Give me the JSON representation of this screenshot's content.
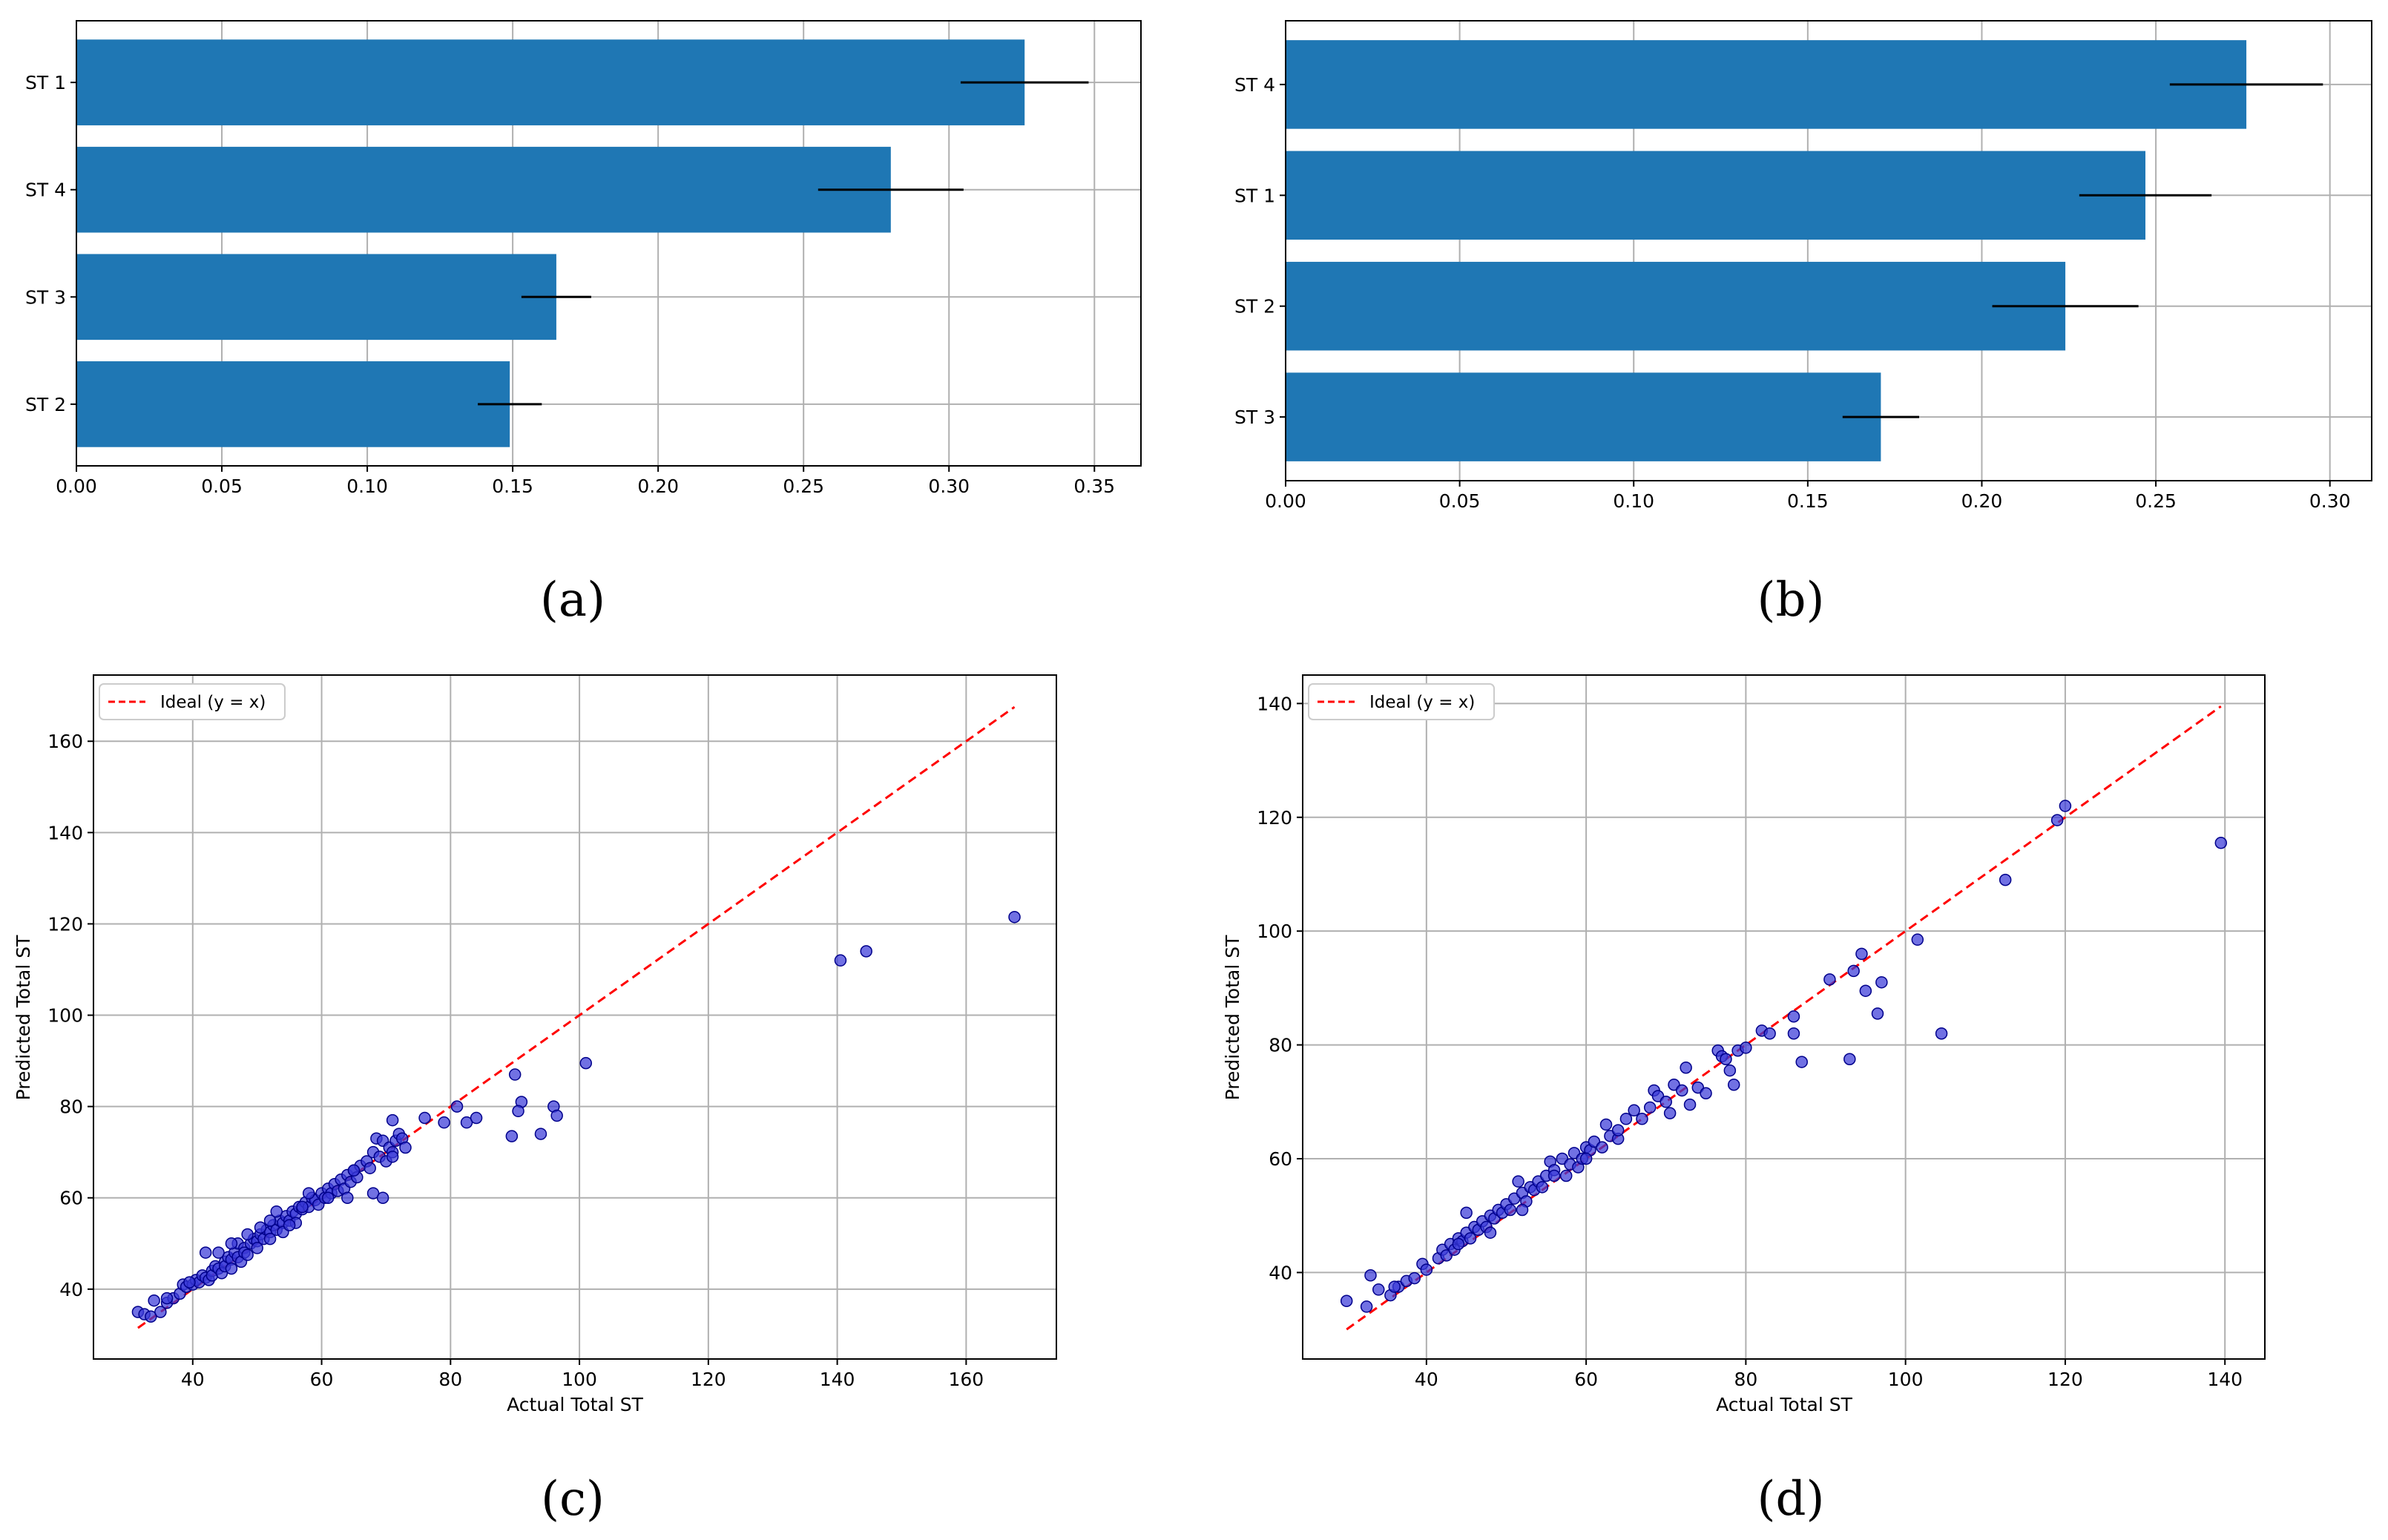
{
  "chart_data": [
    {
      "panel": "(a)",
      "type": "bar",
      "orientation": "horizontal",
      "categories": [
        "ST 1",
        "ST 4",
        "ST 3",
        "ST 2"
      ],
      "values": [
        0.326,
        0.28,
        0.165,
        0.149
      ],
      "errors": [
        0.022,
        0.025,
        0.012,
        0.011
      ],
      "xlim": [
        0,
        0.366
      ],
      "xticks": [
        "0.00",
        "0.05",
        "0.10",
        "0.15",
        "0.20",
        "0.25",
        "0.30",
        "0.35"
      ],
      "xtick_values": [
        0,
        0.05,
        0.1,
        0.15,
        0.2,
        0.25,
        0.3,
        0.35
      ],
      "bar_color": "#1f77b4",
      "grid": true
    },
    {
      "panel": "(b)",
      "type": "bar",
      "orientation": "horizontal",
      "categories": [
        "ST 4",
        "ST 1",
        "ST 2",
        "ST 3"
      ],
      "values": [
        0.276,
        0.247,
        0.224,
        0.171
      ],
      "errors": [
        0.022,
        0.019,
        0.021,
        0.011
      ],
      "xlim": [
        0,
        0.312
      ],
      "xticks": [
        "0.00",
        "0.05",
        "0.10",
        "0.15",
        "0.20",
        "0.25",
        "0.30"
      ],
      "xtick_values": [
        0,
        0.05,
        0.1,
        0.15,
        0.2,
        0.25,
        0.3
      ],
      "bar_color": "#1f77b4",
      "grid": true
    },
    {
      "panel": "(c)",
      "type": "scatter",
      "xlabel": "Actual Total ST",
      "ylabel": "Predicted Total ST",
      "xlim": [
        24.6,
        174
      ],
      "ylim": [
        24.7,
        174.5
      ],
      "xticks": [
        "40",
        "60",
        "80",
        "100",
        "120",
        "140",
        "160"
      ],
      "xtick_values": [
        40,
        60,
        80,
        100,
        120,
        140,
        160
      ],
      "yticks": [
        "40",
        "60",
        "80",
        "100",
        "120",
        "140",
        "160"
      ],
      "ytick_values": [
        40,
        60,
        80,
        100,
        120,
        140,
        160
      ],
      "legend": "Ideal (y = x)",
      "legend_location": "upper-left",
      "ideal_line": [
        31.5,
        167.5
      ],
      "point_color": "#3a3ad8",
      "line_color": "#ff0000",
      "points": [
        [
          31.5,
          35
        ],
        [
          32.5,
          34.5
        ],
        [
          33.5,
          34
        ],
        [
          35,
          35
        ],
        [
          34,
          37.5
        ],
        [
          36,
          37
        ],
        [
          37,
          38
        ],
        [
          38,
          39
        ],
        [
          38.5,
          41
        ],
        [
          39,
          40.5
        ],
        [
          40,
          41
        ],
        [
          40.5,
          42
        ],
        [
          41,
          41.5
        ],
        [
          41.5,
          43
        ],
        [
          42,
          42.5
        ],
        [
          42.5,
          42
        ],
        [
          43,
          44
        ],
        [
          43,
          43
        ],
        [
          43.5,
          45
        ],
        [
          44,
          44.5
        ],
        [
          44.5,
          43.5
        ],
        [
          45,
          46
        ],
        [
          45,
          45
        ],
        [
          45.5,
          47
        ],
        [
          46,
          46.5
        ],
        [
          46,
          44.5
        ],
        [
          46.5,
          48
        ],
        [
          47,
          47
        ],
        [
          47,
          50
        ],
        [
          47.5,
          46
        ],
        [
          48,
          49
        ],
        [
          48,
          48
        ],
        [
          48.5,
          47.5
        ],
        [
          49,
          50
        ],
        [
          49.5,
          51
        ],
        [
          50,
          50.5
        ],
        [
          50,
          49
        ],
        [
          50.5,
          52
        ],
        [
          51,
          51
        ],
        [
          51.5,
          53
        ],
        [
          52,
          52.5
        ],
        [
          52,
          51
        ],
        [
          52.5,
          54
        ],
        [
          53,
          53
        ],
        [
          53.5,
          55
        ],
        [
          54,
          54.5
        ],
        [
          54,
          52.5
        ],
        [
          54.5,
          56
        ],
        [
          55,
          55
        ],
        [
          55.5,
          57
        ],
        [
          56,
          56.5
        ],
        [
          56,
          54.5
        ],
        [
          56.5,
          58
        ],
        [
          57,
          57.5
        ],
        [
          57.5,
          59
        ],
        [
          58,
          58
        ],
        [
          58.5,
          60
        ],
        [
          59,
          59.5
        ],
        [
          59.5,
          58.5
        ],
        [
          60,
          61
        ],
        [
          60.5,
          60
        ],
        [
          61,
          62
        ],
        [
          61.5,
          61
        ],
        [
          62,
          63
        ],
        [
          62.5,
          61.5
        ],
        [
          63,
          64
        ],
        [
          63.5,
          62
        ],
        [
          64,
          65
        ],
        [
          64.5,
          63.5
        ],
        [
          65,
          66
        ],
        [
          65.5,
          64.5
        ],
        [
          66,
          67
        ],
        [
          67,
          68
        ],
        [
          67.5,
          66.5
        ],
        [
          68,
          70
        ],
        [
          68,
          61
        ],
        [
          68.5,
          73
        ],
        [
          69,
          69
        ],
        [
          69.5,
          60
        ],
        [
          69.5,
          72.5
        ],
        [
          70,
          68
        ],
        [
          70.5,
          71
        ],
        [
          71,
          70
        ],
        [
          71,
          77
        ],
        [
          71.5,
          72.5
        ],
        [
          72,
          74
        ],
        [
          72.5,
          73
        ],
        [
          73,
          71
        ],
        [
          76,
          77.5
        ],
        [
          79,
          76.5
        ],
        [
          81,
          80
        ],
        [
          82.5,
          76.5
        ],
        [
          84,
          77.5
        ],
        [
          90,
          87
        ],
        [
          89.5,
          73.5
        ],
        [
          91,
          81
        ],
        [
          90.5,
          79
        ],
        [
          94,
          74
        ],
        [
          96,
          80
        ],
        [
          96.5,
          78
        ],
        [
          101,
          89.5
        ],
        [
          140.5,
          112
        ],
        [
          144.5,
          114
        ],
        [
          167.5,
          121.5
        ],
        [
          44,
          48
        ],
        [
          42,
          48
        ],
        [
          46,
          50
        ],
        [
          53,
          57
        ],
        [
          57,
          58
        ],
        [
          48.5,
          52
        ],
        [
          36,
          38
        ],
        [
          39.5,
          41.5
        ],
        [
          55,
          54
        ],
        [
          61,
          60
        ],
        [
          64,
          60
        ],
        [
          50.5,
          53.5
        ],
        [
          65,
          66
        ],
        [
          52,
          55
        ],
        [
          58,
          61
        ],
        [
          71,
          69
        ]
      ]
    },
    {
      "panel": "(d)",
      "type": "scatter",
      "xlabel": "Actual Total ST",
      "ylabel": "Predicted Total ST",
      "xlim": [
        24.5,
        145
      ],
      "ylim": [
        24.8,
        145
      ],
      "xticks": [
        "40",
        "60",
        "80",
        "100",
        "120",
        "140"
      ],
      "xtick_values": [
        40,
        60,
        80,
        100,
        120,
        140
      ],
      "yticks": [
        "40",
        "60",
        "80",
        "100",
        "120",
        "140"
      ],
      "ytick_values": [
        40,
        60,
        80,
        100,
        120,
        140
      ],
      "legend": "Ideal (y = x)",
      "legend_location": "upper-left",
      "ideal_line": [
        30,
        139.5
      ],
      "point_color": "#3a3ad8",
      "line_color": "#ff0000",
      "points": [
        [
          30,
          35
        ],
        [
          32.5,
          34
        ],
        [
          33,
          39.5
        ],
        [
          34,
          37
        ],
        [
          35.5,
          36
        ],
        [
          36.5,
          37.5
        ],
        [
          37.5,
          38.5
        ],
        [
          38.5,
          39
        ],
        [
          39.5,
          41.5
        ],
        [
          40,
          40.5
        ],
        [
          41.5,
          42.5
        ],
        [
          42,
          44
        ],
        [
          42.5,
          43
        ],
        [
          43,
          45
        ],
        [
          43.5,
          44
        ],
        [
          44,
          46
        ],
        [
          44.5,
          45.5
        ],
        [
          45,
          50.5
        ],
        [
          45,
          47
        ],
        [
          45.5,
          46
        ],
        [
          46,
          48
        ],
        [
          46.5,
          47.5
        ],
        [
          47,
          49
        ],
        [
          47.5,
          48
        ],
        [
          48,
          50
        ],
        [
          48.5,
          49.5
        ],
        [
          49,
          51
        ],
        [
          49.5,
          50.5
        ],
        [
          50,
          52
        ],
        [
          50.5,
          51
        ],
        [
          51,
          53
        ],
        [
          51.5,
          56
        ],
        [
          52,
          54
        ],
        [
          52.5,
          52.5
        ],
        [
          53,
          55
        ],
        [
          53.5,
          54.5
        ],
        [
          54,
          56
        ],
        [
          54.5,
          55
        ],
        [
          55,
          57
        ],
        [
          55.5,
          59.5
        ],
        [
          56,
          58
        ],
        [
          57,
          60
        ],
        [
          57.5,
          57
        ],
        [
          58,
          59
        ],
        [
          58.5,
          61
        ],
        [
          59,
          58.5
        ],
        [
          59.5,
          60
        ],
        [
          60,
          62
        ],
        [
          60.5,
          61.5
        ],
        [
          61,
          63
        ],
        [
          62,
          62
        ],
        [
          62.5,
          66
        ],
        [
          63,
          64
        ],
        [
          64,
          63.5
        ],
        [
          65,
          67
        ],
        [
          66,
          68.5
        ],
        [
          67,
          67
        ],
        [
          68,
          69
        ],
        [
          68.5,
          72
        ],
        [
          69,
          71
        ],
        [
          70,
          70
        ],
        [
          70.5,
          68
        ],
        [
          71,
          73
        ],
        [
          72,
          72
        ],
        [
          72.5,
          76
        ],
        [
          73,
          69.5
        ],
        [
          74,
          72.5
        ],
        [
          75,
          71.5
        ],
        [
          76.5,
          79
        ],
        [
          77,
          78
        ],
        [
          77.5,
          77.5
        ],
        [
          78,
          75.5
        ],
        [
          78.5,
          73
        ],
        [
          79,
          79
        ],
        [
          80,
          79.5
        ],
        [
          82,
          82.5
        ],
        [
          83,
          82
        ],
        [
          86,
          85
        ],
        [
          86,
          82
        ],
        [
          87,
          77
        ],
        [
          90.5,
          91.5
        ],
        [
          93,
          77.5
        ],
        [
          93.5,
          93
        ],
        [
          94.5,
          96
        ],
        [
          95,
          89.5
        ],
        [
          96.5,
          85.5
        ],
        [
          97,
          91
        ],
        [
          101.5,
          98.5
        ],
        [
          104.5,
          82
        ],
        [
          112.5,
          109
        ],
        [
          119,
          119.5
        ],
        [
          120,
          122
        ],
        [
          139.5,
          115.5
        ],
        [
          44,
          45
        ],
        [
          48,
          47
        ],
        [
          52,
          51
        ],
        [
          56,
          57
        ],
        [
          60,
          60
        ],
        [
          64,
          65
        ],
        [
          36,
          37.5
        ]
      ]
    }
  ]
}
